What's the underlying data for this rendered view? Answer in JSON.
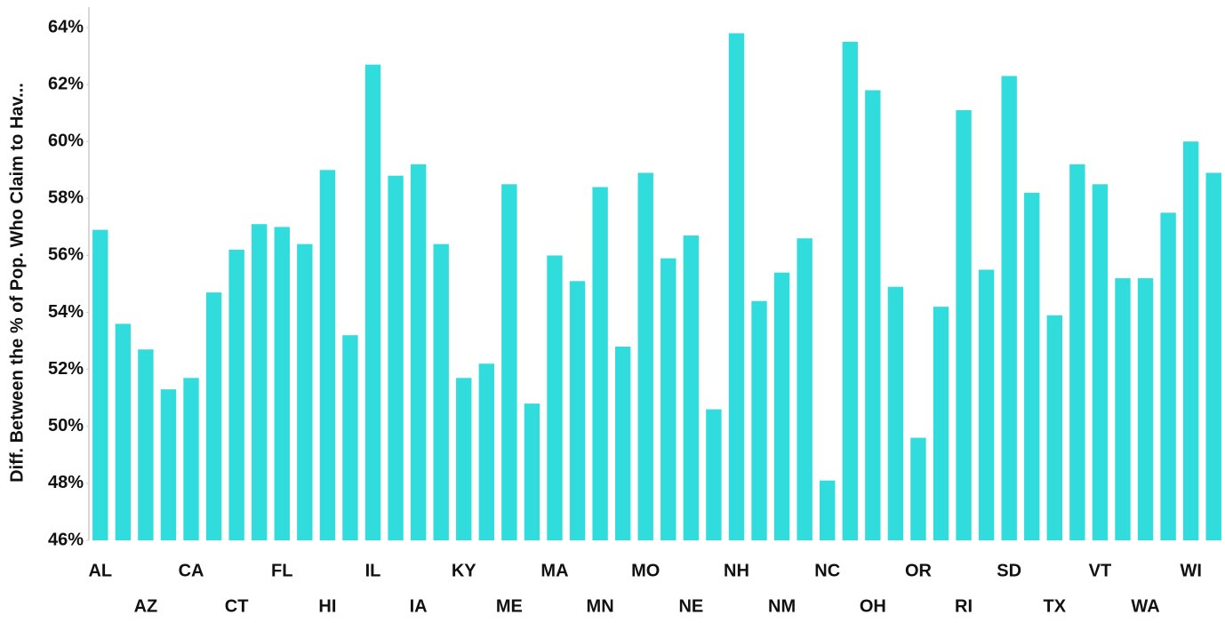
{
  "chart_data": {
    "type": "bar",
    "y_label": "Diff. Between the % of Pop. Who Claim to Hav...",
    "categories": [
      "AL",
      null,
      "AZ",
      null,
      "CA",
      null,
      "CT",
      null,
      "FL",
      null,
      "HI",
      null,
      "IL",
      null,
      "IA",
      null,
      "KY",
      null,
      "ME",
      null,
      "MA",
      null,
      "MN",
      null,
      "MO",
      null,
      "NE",
      null,
      "NH",
      null,
      "NM",
      null,
      "NC",
      null,
      "OH",
      null,
      "OR",
      null,
      "RI",
      null,
      "SD",
      null,
      "TX",
      null,
      "VT",
      null,
      "WA",
      null,
      "WI",
      null
    ],
    "values": [
      56.9,
      53.6,
      52.7,
      51.3,
      51.7,
      54.7,
      56.2,
      57.1,
      57.0,
      56.4,
      59.0,
      53.2,
      62.7,
      58.8,
      59.2,
      56.4,
      51.7,
      52.2,
      58.5,
      50.8,
      56.0,
      55.1,
      58.4,
      52.8,
      58.9,
      55.9,
      56.7,
      50.6,
      63.8,
      54.4,
      55.4,
      56.6,
      48.1,
      63.5,
      61.8,
      54.9,
      49.6,
      54.2,
      61.1,
      55.5,
      62.3,
      58.2,
      53.9,
      59.2,
      58.5,
      55.2,
      55.2,
      57.5,
      60.0,
      58.9
    ],
    "color": "#30dcdc",
    "ylim": [
      46,
      64
    ],
    "yticks": [
      {
        "value": 46,
        "label": "46%"
      },
      {
        "value": 48,
        "label": "48%"
      },
      {
        "value": 50,
        "label": "50%"
      },
      {
        "value": 52,
        "label": "52%"
      },
      {
        "value": 54,
        "label": "54%"
      },
      {
        "value": 56,
        "label": "56%"
      },
      {
        "value": 58,
        "label": "58%"
      },
      {
        "value": 60,
        "label": "60%"
      },
      {
        "value": 62,
        "label": "62%"
      },
      {
        "value": 64,
        "label": "64%"
      }
    ],
    "grid": false
  }
}
